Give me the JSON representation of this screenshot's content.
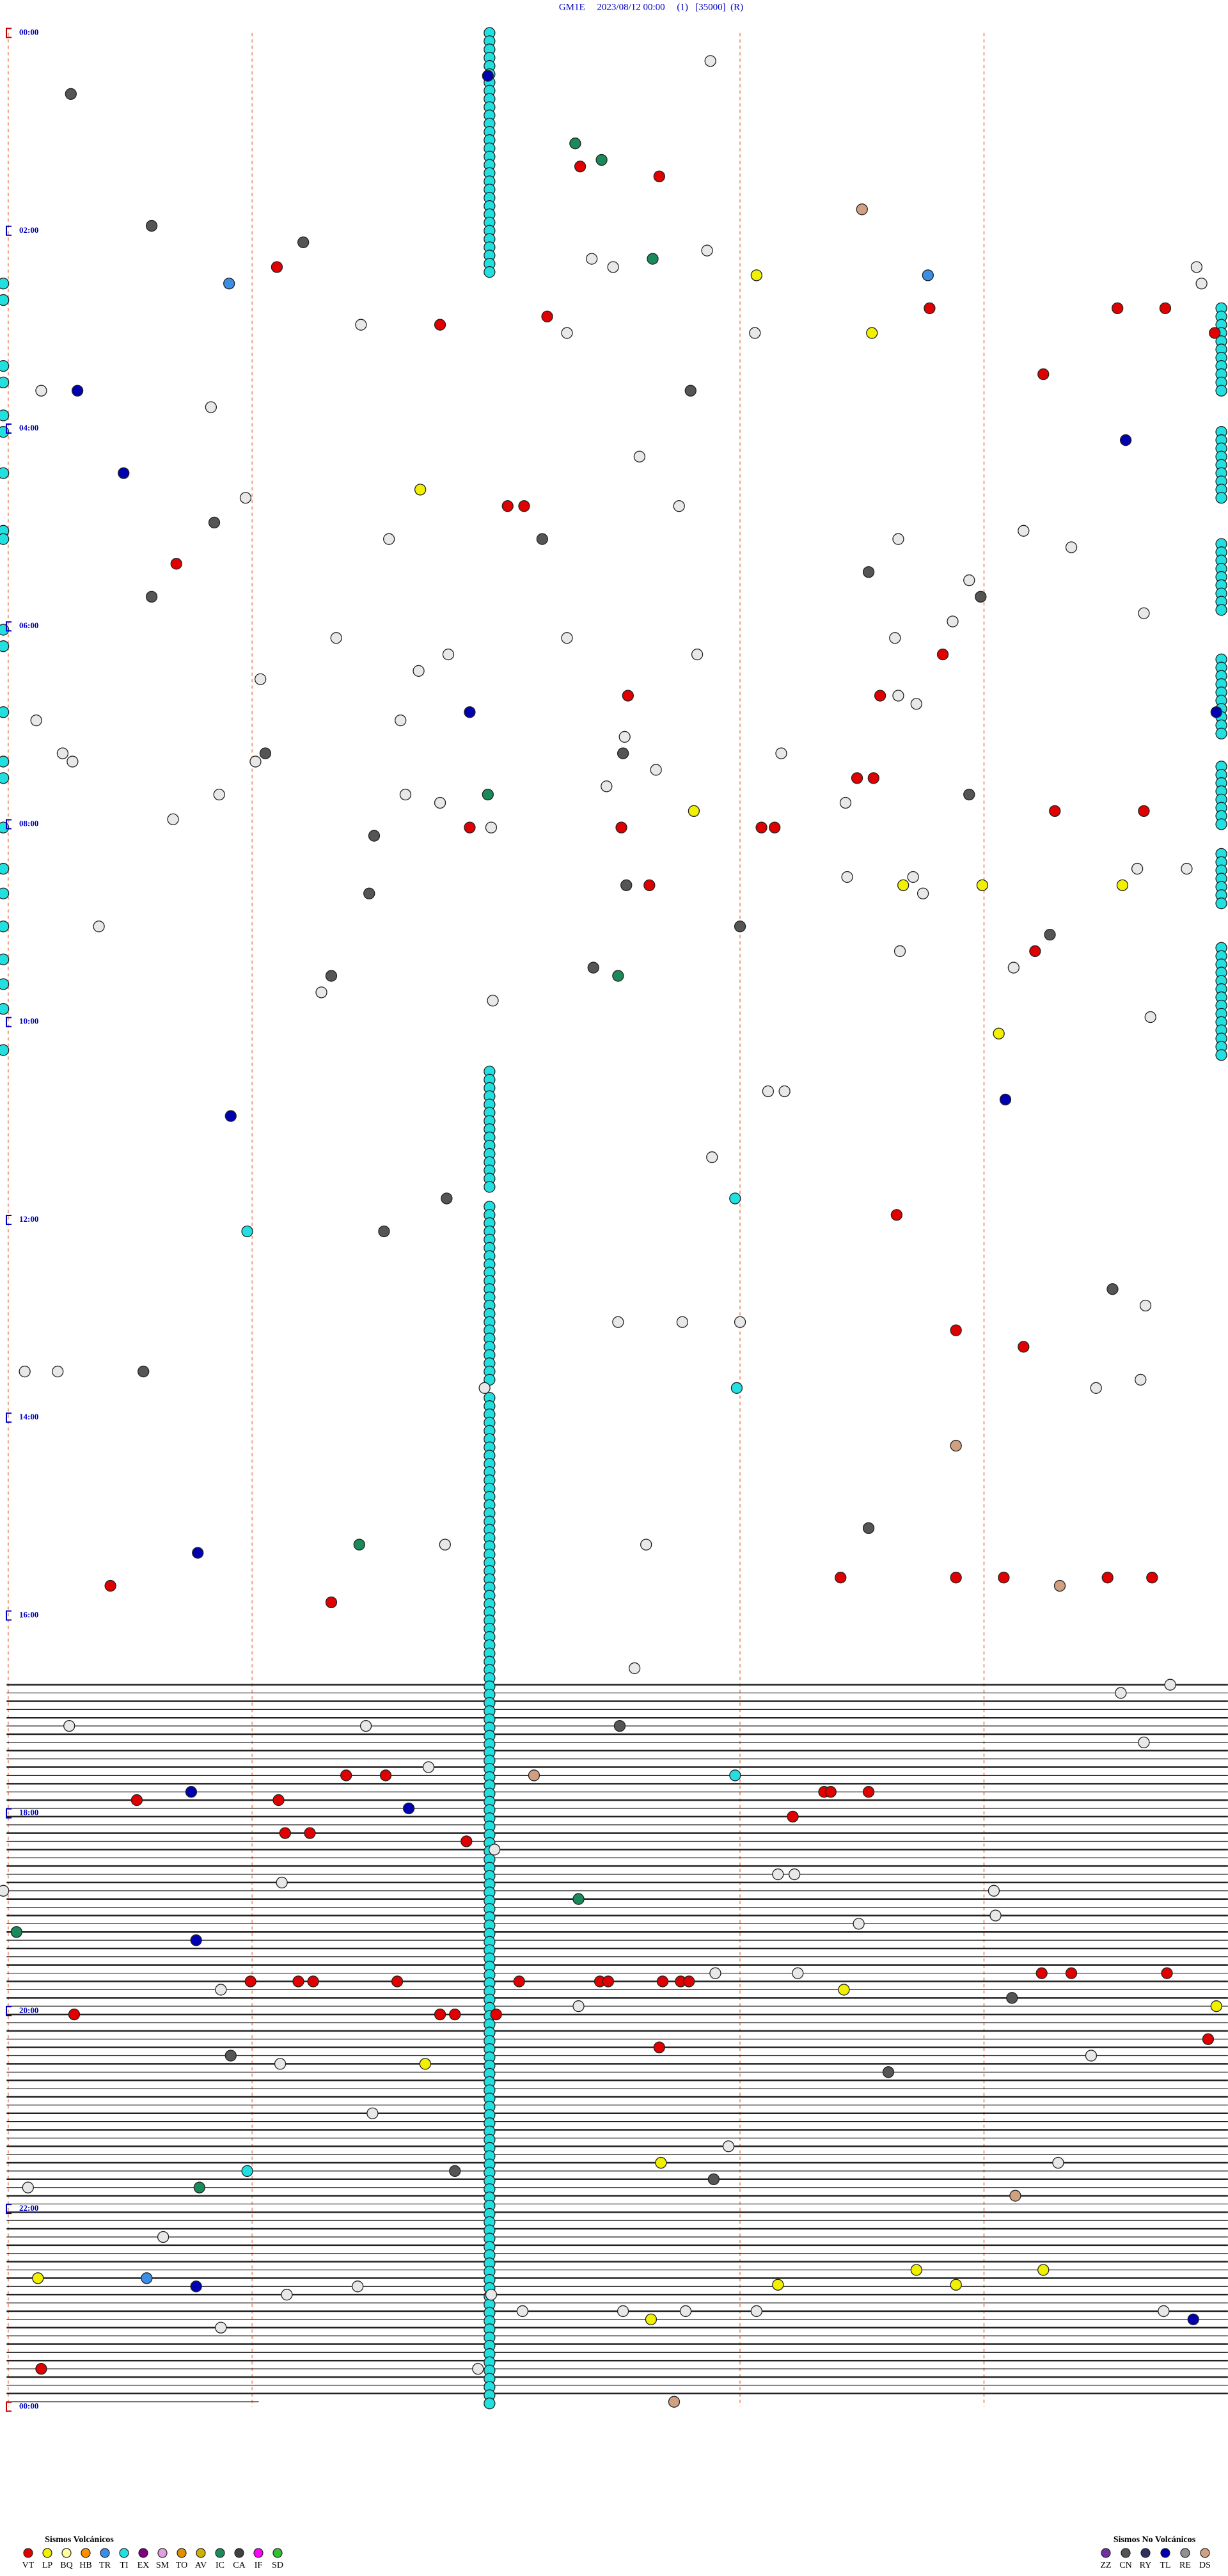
{
  "header": {
    "title": "GM1E     2023/08/12 00:00     (1)   [35000]  (R)"
  },
  "hour_labels": [
    "00:00",
    "02:00",
    "04:00",
    "06:00",
    "08:00",
    "10:00",
    "12:00",
    "14:00",
    "16:00",
    "18:00",
    "20:00",
    "22:00",
    "00:00"
  ],
  "legend_volcanic": {
    "title": "Sismos Volcánicos",
    "items": [
      {
        "label": "VT",
        "color": "#e00000"
      },
      {
        "label": "LP",
        "color": "#f0f000"
      },
      {
        "label": "BQ",
        "color": "#ffffa0"
      },
      {
        "label": "HB",
        "color": "#ff9000"
      },
      {
        "label": "TR",
        "color": "#3a8ee6"
      },
      {
        "label": "TI",
        "color": "#22e0e0"
      },
      {
        "label": "EX",
        "color": "#800080"
      },
      {
        "label": "SM",
        "color": "#e0a0e0"
      },
      {
        "label": "TO",
        "color": "#e09000"
      },
      {
        "label": "AV",
        "color": "#d0b000"
      },
      {
        "label": "IC",
        "color": "#1a8a5a"
      },
      {
        "label": "CA",
        "color": "#404040"
      },
      {
        "label": "IF",
        "color": "#ff00ff"
      },
      {
        "label": "SD",
        "color": "#30c030"
      }
    ]
  },
  "legend_non_volcanic": {
    "title": "Sismos No Volcánicos",
    "items": [
      {
        "label": "ZZ",
        "color": "#7030a0"
      },
      {
        "label": "CN",
        "color": "#555555"
      },
      {
        "label": "RY",
        "color": "#303060"
      },
      {
        "label": "TL",
        "color": "#0000b0"
      },
      {
        "label": "RE",
        "color": "#909090"
      },
      {
        "label": "DS",
        "color": "#d0a080"
      }
    ]
  }
}
